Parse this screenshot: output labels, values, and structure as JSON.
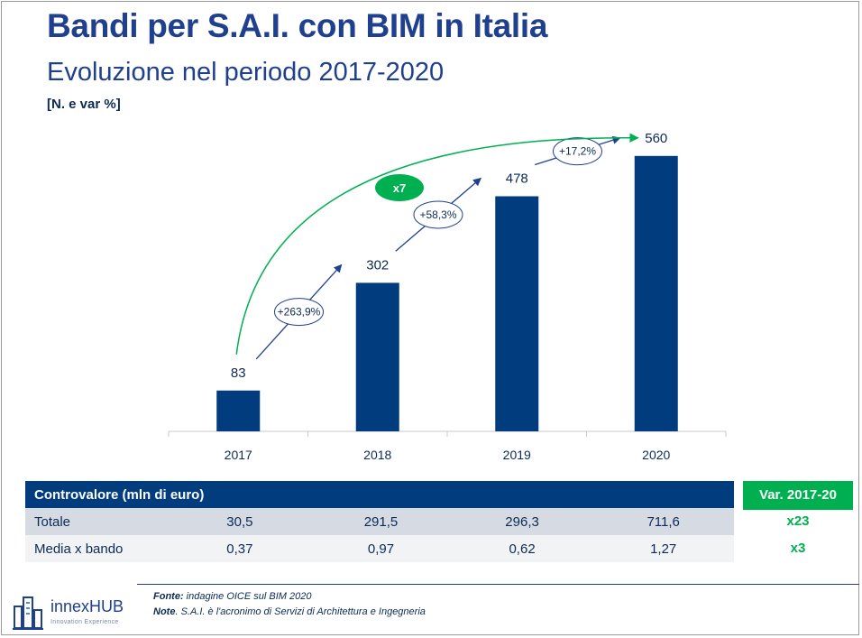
{
  "title": "Bandi per S.A.I. con BIM in Italia",
  "subtitle": "Evoluzione nel periodo 2017-2020",
  "unit_note": "[N. e var %]",
  "chart_data": {
    "type": "bar",
    "title": "Bandi per S.A.I. con BIM in Italia",
    "subtitle": "Evoluzione nel periodo 2017-2020",
    "categories": [
      "2017",
      "2018",
      "2019",
      "2020"
    ],
    "values": [
      83,
      302,
      478,
      560
    ],
    "ylim": [
      0,
      600
    ],
    "grid": false,
    "legend": "none",
    "bar_color": "#003c7e",
    "growth_labels": [
      "+263,9%",
      "+58,3%",
      "+17,2%"
    ],
    "overall_label": "x7",
    "overall_color": "#00b050"
  },
  "table": {
    "header": "Controvalore (mln di euro)",
    "rows": [
      {
        "label": "Totale",
        "values": [
          "30,5",
          "291,5",
          "296,3",
          "711,6"
        ]
      },
      {
        "label": "Media x bando",
        "values": [
          "0,37",
          "0,97",
          "0,62",
          "1,27"
        ]
      }
    ],
    "var_header": "Var. 2017-20",
    "var_values": [
      "x23",
      "x3"
    ]
  },
  "footer": {
    "source_label": "Fonte:",
    "source_text": " indagine OICE sul BIM 2020",
    "note_label": "Note",
    "note_text": ". S.A.I. è l'acronimo di Servizi di Architettura e Ingegneria"
  },
  "logo": {
    "name": "innexHUB",
    "tagline": "Innovation Experience",
    "icon": "city-icon"
  },
  "colors": {
    "title": "#1f3f8f",
    "bar": "#003c7e",
    "accent_green": "#00b050",
    "table_head": "#003c7e"
  }
}
